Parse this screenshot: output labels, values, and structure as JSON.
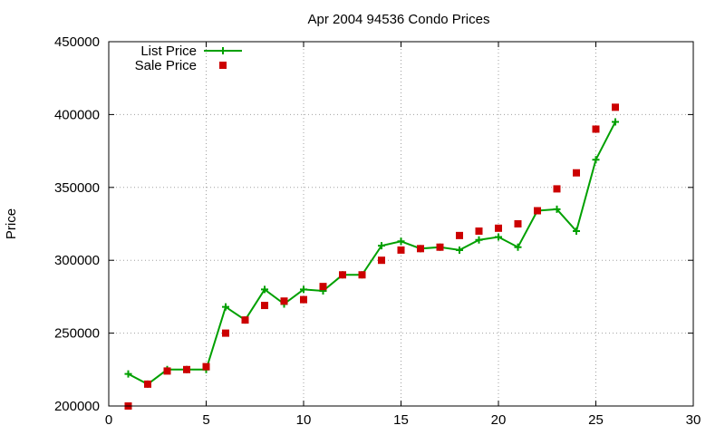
{
  "colors": {
    "list_price": "#00a000",
    "sale_price": "#cc0000"
  },
  "chart_data": {
    "type": "line",
    "title": "Apr 2004 94536 Condo Prices",
    "xlabel": "",
    "ylabel": "Price",
    "xlim": [
      0,
      30
    ],
    "ylim": [
      200000,
      450000
    ],
    "xticks": [
      0,
      5,
      10,
      15,
      20,
      25,
      30
    ],
    "yticks": [
      200000,
      250000,
      300000,
      350000,
      400000,
      450000
    ],
    "xtick_labels": [
      "0",
      "5",
      "10",
      "15",
      "20",
      "25",
      "30"
    ],
    "ytick_labels": [
      "200000",
      "250000",
      "300000",
      "350000",
      "400000",
      "450000"
    ],
    "grid": true,
    "legend_position": "top-left",
    "series": [
      {
        "name": "List Price",
        "style": "linespoints",
        "marker": "plus",
        "x": [
          1,
          2,
          3,
          4,
          5,
          6,
          7,
          8,
          9,
          10,
          11,
          12,
          13,
          14,
          15,
          16,
          17,
          18,
          19,
          20,
          21,
          22,
          23,
          24,
          25,
          26
        ],
        "y": [
          222000,
          215000,
          225000,
          225000,
          225000,
          268000,
          259000,
          280000,
          270000,
          280000,
          279000,
          290000,
          290000,
          310000,
          313000,
          308000,
          309000,
          307000,
          314000,
          316000,
          309000,
          334000,
          335000,
          320000,
          369000,
          395000
        ]
      },
      {
        "name": "Sale Price",
        "style": "points",
        "marker": "square",
        "x": [
          1,
          2,
          3,
          4,
          5,
          6,
          7,
          8,
          9,
          10,
          11,
          12,
          13,
          14,
          15,
          16,
          17,
          18,
          19,
          20,
          21,
          22,
          23,
          24,
          25,
          26
        ],
        "y": [
          200000,
          215000,
          224000,
          225000,
          227000,
          250000,
          259000,
          269000,
          272000,
          273000,
          282000,
          290000,
          290000,
          300000,
          307000,
          308000,
          309000,
          317000,
          320000,
          322000,
          325000,
          334000,
          349000,
          360000,
          390000,
          405000
        ]
      }
    ]
  }
}
